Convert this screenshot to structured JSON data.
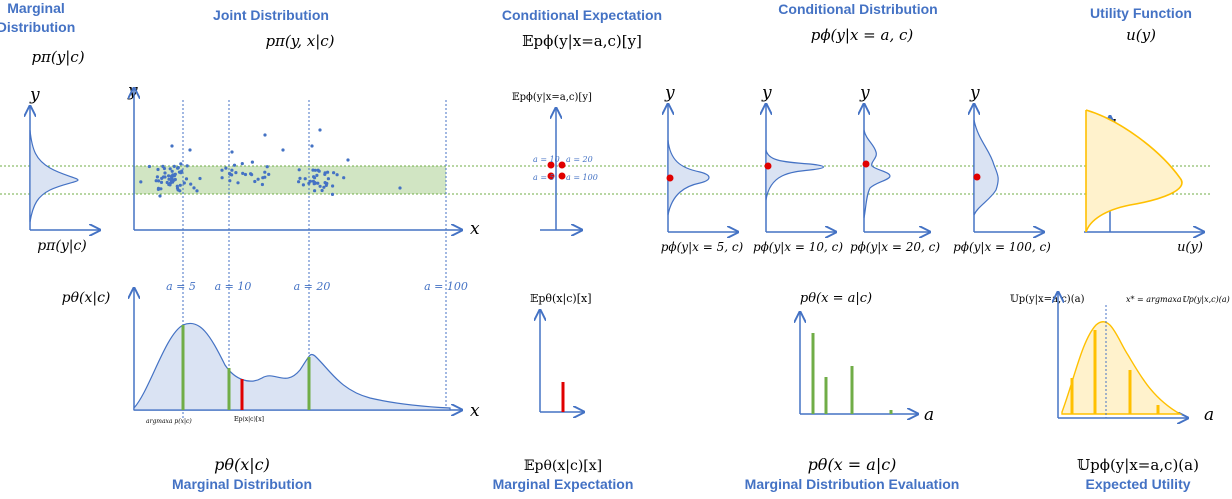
{
  "headers": {
    "marginal_dist_line1": "Marginal",
    "marginal_dist_line2": "Distribution",
    "joint": "Joint Distribution",
    "cond_exp": "Conditional Expectation",
    "cond_dist": "Conditional Distribution",
    "utility": "Utility Function"
  },
  "formulas": {
    "p_pi_y_c": "pπ(y|c)",
    "p_pi_yx_c": "pπ(y, x|c)",
    "e_cond": "𝔼pϕ(y|x=a,c)[y]",
    "p_phi_cond": "pϕ(y|x = a, c)",
    "u_y": "u(y)"
  },
  "axis_labels": {
    "y": "y",
    "x": "x",
    "a": "a",
    "p_pi_bottom": "pπ(y|c)",
    "u_y_bottom": "u(y)",
    "p_theta_left": "pθ(x|c)",
    "e_ylabel_top": "𝔼pϕ(y|x=a,c)[y]",
    "e_ylabel_bottom": "𝔼pθ(x|c)[x]",
    "p_theta_eval": "pθ(x = a|c)",
    "u_ylabel": "𝕌p(y|x=a,c)(a)",
    "xstar": "x* = argmaxa𝕌p(y|x,c)(a)",
    "argmax": "argmaxa p(x|c)",
    "e_small": "𝔼p(x|c)[x]"
  },
  "a_values": [
    "a = 5",
    "a = 10",
    "a = 20",
    "a = 100"
  ],
  "dot_labels": [
    "a = 10",
    "a = 20",
    "a = 5",
    "a = 100"
  ],
  "cond_captions": [
    "pϕ(y|x = 5, c)",
    "pϕ(y|x = 10, c)",
    "pϕ(y|x = 20, c)",
    "pϕ(y|x = 100, c)"
  ],
  "bottom_formulas": {
    "marginal": "pθ(x|c)",
    "marginal_exp": "𝔼pθ(x|c)[x]",
    "eval": "pθ(x = a|c)",
    "utility": "𝕌pϕ(y|x=a,c)(a)"
  },
  "bottom_titles": {
    "marginal": "Marginal Distribution",
    "marginal_exp": "Marginal Expectation",
    "eval": "Marginal Distribution Evaluation",
    "utility": "Expected Utility"
  },
  "colors": {
    "blue": "#4472C4",
    "fill_blue": "#DAE3F3",
    "green_band": "#C5DFB4",
    "green_bar": "#70AD47",
    "red": "#E00000",
    "yellow": "#FFC000",
    "yellow_fill": "#FFF2CC"
  }
}
